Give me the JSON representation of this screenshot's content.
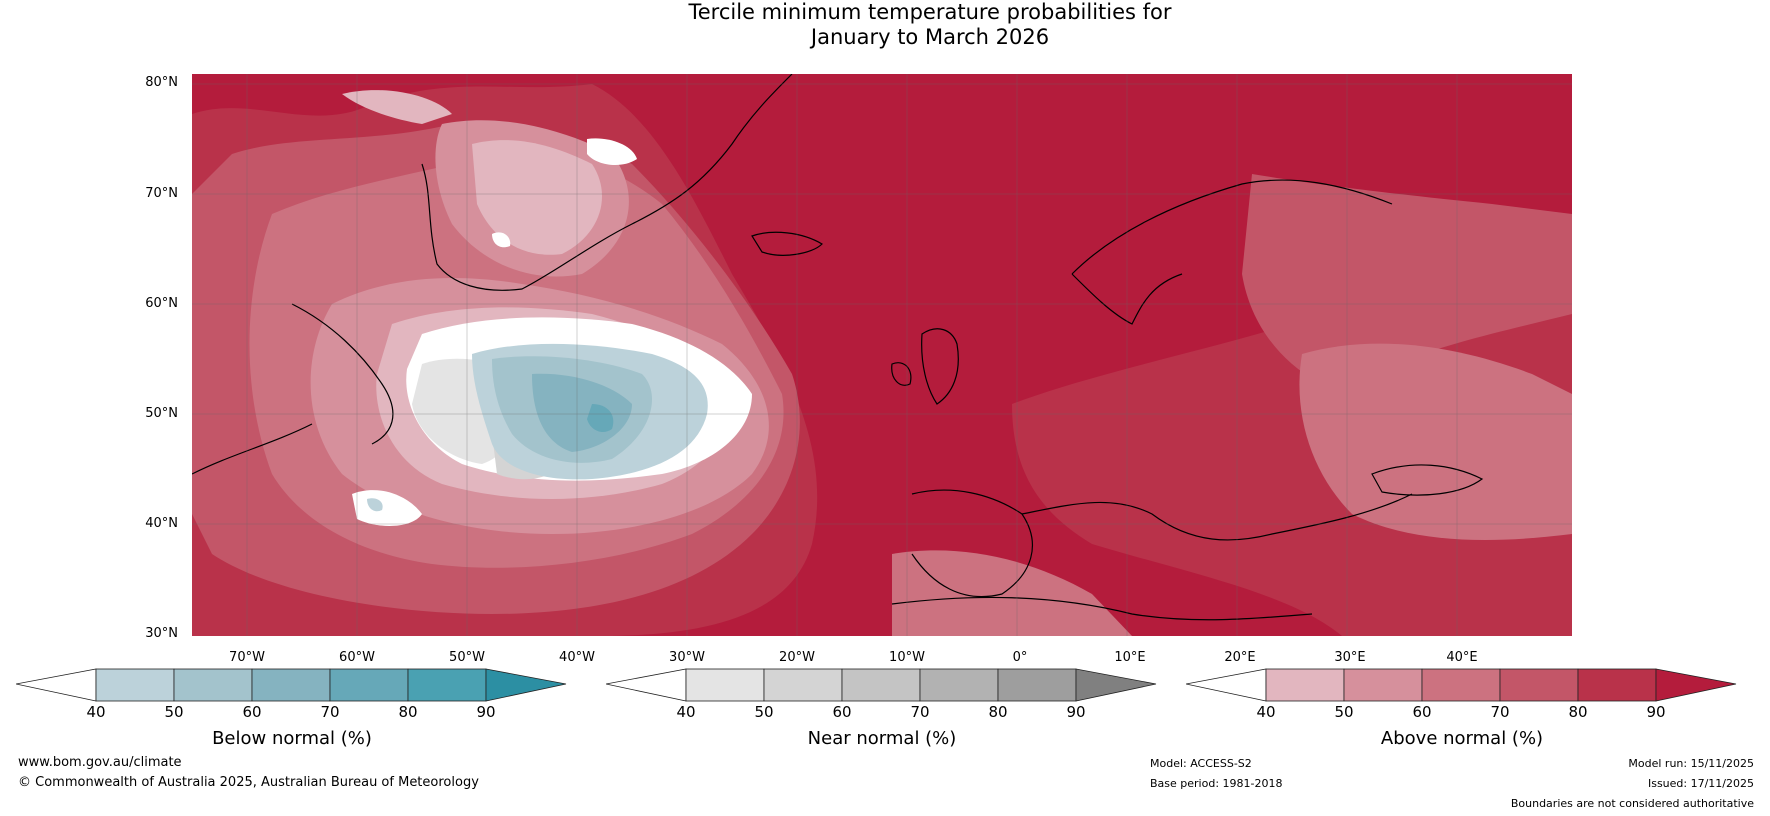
{
  "title": {
    "line1": "Tercile minimum temperature probabilities for",
    "line2": "January to March 2026"
  },
  "axes": {
    "lat_labels": [
      "80°N",
      "70°N",
      "60°N",
      "50°N",
      "40°N",
      "30°N"
    ],
    "lon_labels": [
      "70°W",
      "60°W",
      "50°W",
      "40°W",
      "30°W",
      "20°W",
      "10°W",
      "0°",
      "10°E",
      "20°E",
      "30°E",
      "40°E"
    ]
  },
  "colorbars": [
    {
      "title": "Below normal (%)",
      "ticks": [
        "40",
        "50",
        "60",
        "70",
        "80",
        "90"
      ],
      "colors": [
        "#ffffff",
        "#bcd2da",
        "#a3c3cc",
        "#85b3c0",
        "#66a8b8",
        "#4aa1b2",
        "#2c8fa3"
      ]
    },
    {
      "title": "Near normal (%)",
      "ticks": [
        "40",
        "50",
        "60",
        "70",
        "80",
        "90"
      ],
      "colors": [
        "#ffffff",
        "#e4e4e4",
        "#d4d4d4",
        "#c4c4c4",
        "#b2b2b2",
        "#9e9e9e",
        "#808080"
      ]
    },
    {
      "title": "Above normal (%)",
      "ticks": [
        "40",
        "50",
        "60",
        "70",
        "80",
        "90"
      ],
      "colors": [
        "#ffffff",
        "#e2b6bf",
        "#d6909c",
        "#cc7280",
        "#c35668",
        "#b9324a",
        "#b41c3c"
      ]
    }
  ],
  "footer": {
    "website": "www.bom.gov.au/climate",
    "copyright": "© Commonwealth of Australia 2025, Australian Bureau of Meteorology",
    "model": "Model: ACCESS-S2",
    "base_period": "Base period: 1981-2018",
    "model_run": "Model run: 15/11/2025",
    "issued": "Issued: 17/11/2025",
    "disclaimer": "Boundaries are not considered authoritative"
  }
}
